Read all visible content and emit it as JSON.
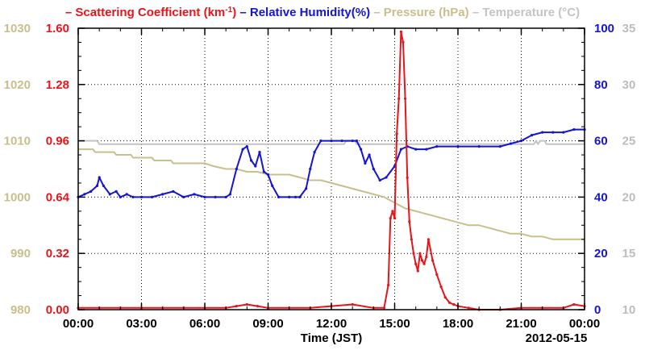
{
  "chart_data": {
    "type": "line",
    "legend": [
      {
        "series_key": "scattering",
        "prefix": "– ",
        "text": "Scattering Coefficient (km",
        "sup": "-1",
        "suffix": ")",
        "color": "#e8141c"
      },
      {
        "series_key": "humidity",
        "prefix": " – ",
        "text": "Relative Humidity(%)",
        "color": "#1414d4"
      },
      {
        "series_key": "pressure",
        "prefix": " – ",
        "text": "Pressure (hPa)",
        "color": "#c8bf8c"
      },
      {
        "series_key": "temperature",
        "prefix": " – ",
        "text": "Temperature (°C)",
        "color": "#c4c4c4"
      }
    ],
    "xlabel": "Time (JST)",
    "date_label": "2012-05-15",
    "x_ticks": [
      "00:00",
      "03:00",
      "06:00",
      "09:00",
      "12:00",
      "15:00",
      "18:00",
      "21:00",
      "00:00"
    ],
    "xlim": [
      0,
      24
    ],
    "axes": {
      "pressure": {
        "ylim": [
          980,
          1030
        ],
        "ticks": [
          "980",
          "990",
          "1000",
          "1010",
          "1020",
          "1030"
        ],
        "color": "#c8bf8c"
      },
      "scattering": {
        "ylim": [
          0,
          1.6
        ],
        "ticks": [
          "0.00",
          "0.32",
          "0.64",
          "0.96",
          "1.28",
          "1.60"
        ],
        "color": "#e8141c"
      },
      "humidity": {
        "ylim": [
          0,
          100
        ],
        "ticks": [
          "0",
          "20",
          "40",
          "60",
          "80",
          "100"
        ],
        "color": "#1414d4"
      },
      "temperature": {
        "ylim": [
          10,
          35
        ],
        "ticks": [
          "10",
          "15",
          "20",
          "25",
          "30",
          "35"
        ],
        "color": "#bdbdbd"
      }
    },
    "grid": true,
    "series": [
      {
        "key": "temperature",
        "axis": "temperature",
        "x": [
          0,
          0.9,
          1.0,
          3.0,
          6.0,
          9.0,
          12.0,
          12.6,
          12.7,
          13.1,
          13.2,
          15.0,
          18.0,
          21.0,
          21.6,
          21.7,
          21.8,
          21.9,
          22.1,
          22.2,
          22.5,
          24.0
        ],
        "y": [
          25,
          25,
          24.7,
          24.7,
          24.7,
          24.7,
          24.7,
          24.7,
          25,
          25,
          24.7,
          24.7,
          24.7,
          24.7,
          24.7,
          25,
          24.7,
          25,
          25,
          24.7,
          24.7,
          24.7
        ]
      },
      {
        "key": "pressure",
        "axis": "pressure",
        "x": [
          0,
          0.7,
          0.8,
          1.7,
          1.8,
          2.5,
          2.6,
          3.5,
          3.6,
          4.4,
          4.5,
          5.0,
          5.5,
          6.0,
          6.4,
          7.0,
          7.5,
          8.0,
          8.5,
          9.0,
          9.5,
          10.0,
          10.5,
          11.0,
          11.5,
          12.0,
          12.5,
          13.0,
          13.5,
          14.0,
          14.5,
          15.0,
          15.5,
          16.0,
          16.5,
          17.0,
          17.5,
          18.0,
          18.5,
          19.0,
          19.5,
          20.0,
          20.5,
          21.0,
          21.5,
          22.0,
          22.5,
          23.0,
          24.0
        ],
        "y": [
          1008.5,
          1008.5,
          1008,
          1008,
          1007.5,
          1007.5,
          1007,
          1007,
          1006.5,
          1006.5,
          1006,
          1006,
          1006,
          1006,
          1005.5,
          1005,
          1005,
          1004.5,
          1004.5,
          1004,
          1004,
          1004,
          1003.5,
          1003,
          1003,
          1002.5,
          1002,
          1001.5,
          1001,
          1000.5,
          1000,
          999,
          998,
          997.5,
          997,
          996.5,
          996,
          995.5,
          995,
          995,
          994.5,
          994,
          993.5,
          993.5,
          993,
          993,
          992.5,
          992.5,
          992.5
        ]
      },
      {
        "key": "humidity",
        "axis": "humidity",
        "x": [
          0,
          0.3,
          0.6,
          0.9,
          1.0,
          1.2,
          1.5,
          1.8,
          2.0,
          2.3,
          2.6,
          3.0,
          3.5,
          4.0,
          4.5,
          5.0,
          5.5,
          6.0,
          6.5,
          7.0,
          7.2,
          7.5,
          7.8,
          8.0,
          8.2,
          8.4,
          8.6,
          8.8,
          9.0,
          9.2,
          9.5,
          10.0,
          10.3,
          10.5,
          10.8,
          11.0,
          11.2,
          11.5,
          12.0,
          12.5,
          13.0,
          13.2,
          13.4,
          13.6,
          13.8,
          14.0,
          14.3,
          14.6,
          15.0,
          15.3,
          15.6,
          16.0,
          16.5,
          17.0,
          18.0,
          19.0,
          20.0,
          20.5,
          21.0,
          21.5,
          22.0,
          22.5,
          23.0,
          23.5,
          24.0
        ],
        "y": [
          40,
          41,
          42,
          44,
          47,
          44,
          41,
          42,
          40,
          41,
          40,
          40,
          40,
          41,
          42,
          40,
          41,
          40,
          40,
          40,
          41,
          50,
          57,
          58,
          53,
          51,
          56,
          49,
          48,
          44,
          40,
          40,
          40,
          40,
          43,
          50,
          56,
          60,
          60,
          60,
          60,
          60,
          57,
          52,
          55,
          50,
          46,
          47,
          51,
          57,
          58,
          57,
          57,
          58,
          58,
          58,
          58,
          59,
          60,
          62,
          63,
          63,
          63,
          64,
          64
        ]
      },
      {
        "key": "scattering",
        "axis": "scattering",
        "x": [
          0,
          1,
          2,
          3,
          4,
          5,
          6,
          7,
          7.5,
          8,
          8.5,
          9,
          10,
          11,
          12,
          13,
          14,
          14.5,
          14.7,
          14.8,
          14.9,
          15.0,
          15.1,
          15.2,
          15.3,
          15.4,
          15.5,
          15.6,
          15.7,
          15.8,
          15.9,
          16.0,
          16.1,
          16.2,
          16.3,
          16.4,
          16.5,
          16.6,
          16.8,
          17.0,
          17.2,
          17.4,
          17.6,
          17.8,
          18.0,
          18.5,
          19.0,
          20.0,
          21.0,
          22.0,
          23.0,
          23.5,
          24.0
        ],
        "y": [
          0.01,
          0.01,
          0.01,
          0.01,
          0.01,
          0.01,
          0.01,
          0.01,
          0.02,
          0.03,
          0.02,
          0.01,
          0.01,
          0.01,
          0.02,
          0.03,
          0.01,
          0.01,
          0.14,
          0.52,
          0.56,
          0.52,
          1.0,
          1.2,
          1.58,
          1.52,
          1.2,
          0.75,
          0.5,
          0.4,
          0.32,
          0.26,
          0.22,
          0.32,
          0.28,
          0.26,
          0.3,
          0.4,
          0.28,
          0.2,
          0.13,
          0.07,
          0.04,
          0.03,
          0.02,
          0.01,
          0.0,
          0.0,
          0.01,
          0.01,
          0.01,
          0.03,
          0.02
        ]
      }
    ]
  }
}
